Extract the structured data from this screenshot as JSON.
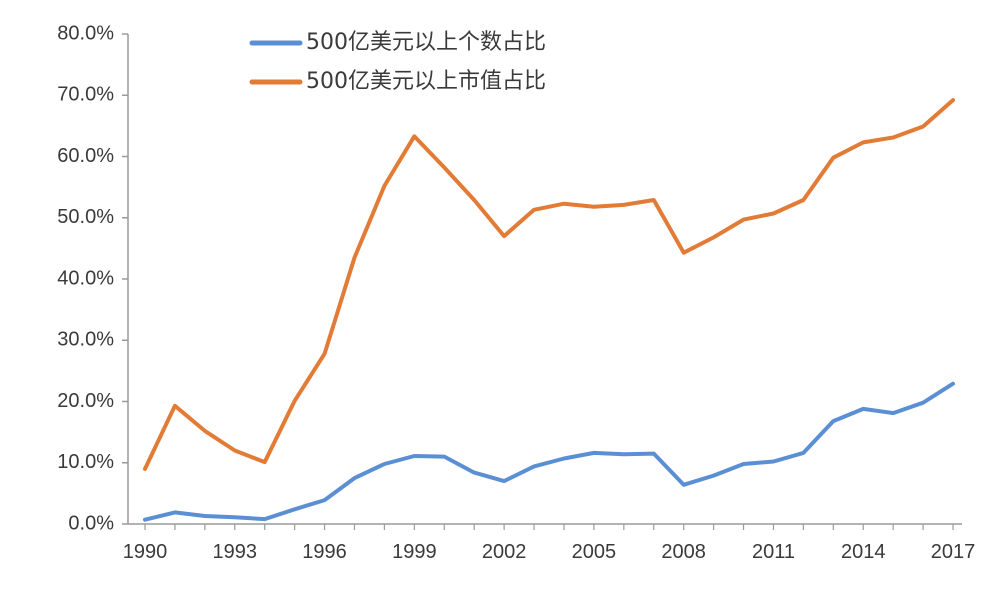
{
  "chart_data": {
    "type": "line",
    "title": "",
    "xlabel": "",
    "ylabel": "",
    "ylim": [
      0,
      80
    ],
    "y_ticks": [
      "0.0%",
      "10.0%",
      "20.0%",
      "30.0%",
      "40.0%",
      "50.0%",
      "60.0%",
      "70.0%",
      "80.0%"
    ],
    "x_ticks": [
      "1990",
      "1993",
      "1996",
      "1999",
      "2002",
      "2005",
      "2008",
      "2011",
      "2014",
      "2017"
    ],
    "x": [
      1990,
      1991,
      1992,
      1993,
      1994,
      1995,
      1996,
      1997,
      1998,
      1999,
      2000,
      2001,
      2002,
      2003,
      2004,
      2005,
      2006,
      2007,
      2008,
      2009,
      2010,
      2011,
      2012,
      2013,
      2014,
      2015,
      2016,
      2017
    ],
    "grid": false,
    "legend_position": "top-center",
    "series": [
      {
        "name": "500亿美元以上个数占比",
        "color": "#5b8fd4",
        "values": [
          0.7,
          1.9,
          1.3,
          1.1,
          0.8,
          2.4,
          3.9,
          7.5,
          9.8,
          11.1,
          11.0,
          8.4,
          7.0,
          9.4,
          10.7,
          11.6,
          11.4,
          11.5,
          6.4,
          7.9,
          9.8,
          10.2,
          11.6,
          16.8,
          18.8,
          18.1,
          19.8,
          22.9
        ]
      },
      {
        "name": "500亿美元以上市值占比",
        "color": "#e27b35",
        "values": [
          9.0,
          19.3,
          15.2,
          12.0,
          10.1,
          20.1,
          27.8,
          43.5,
          55.2,
          63.3,
          58.2,
          52.9,
          47.0,
          51.3,
          52.3,
          51.8,
          52.1,
          52.9,
          44.3,
          46.8,
          49.7,
          50.7,
          52.9,
          59.8,
          62.3,
          63.1,
          64.9,
          69.2
        ]
      }
    ]
  }
}
